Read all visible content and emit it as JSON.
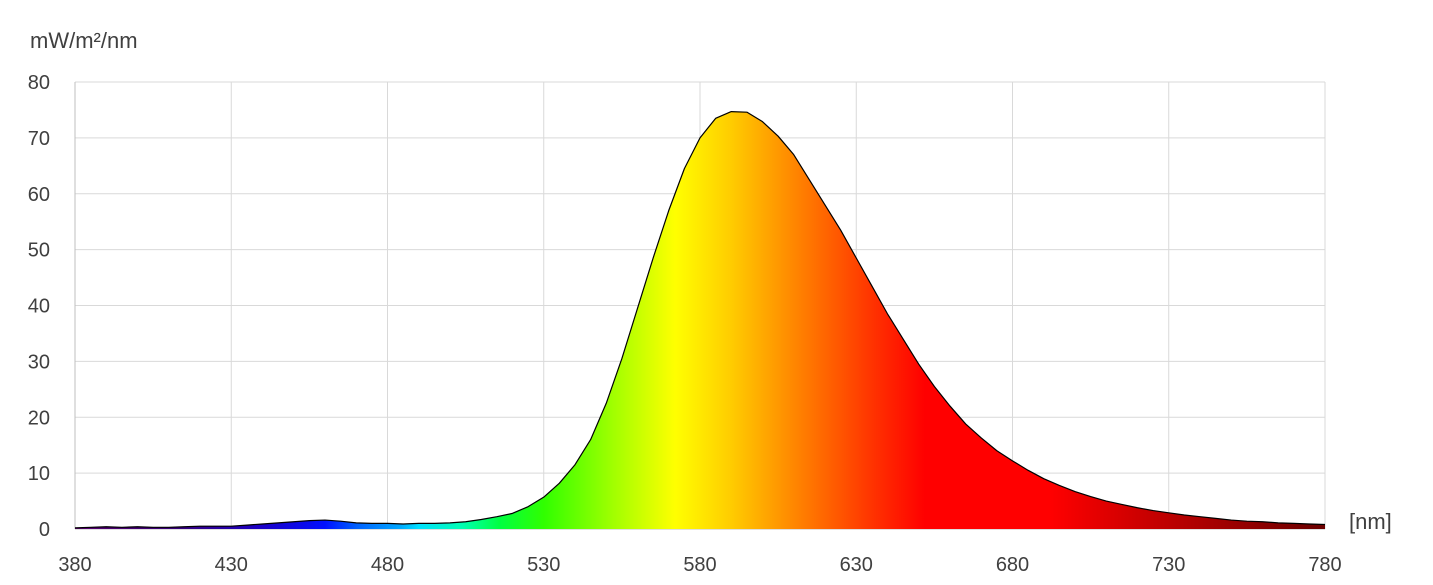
{
  "chart_data": {
    "type": "area",
    "title": "",
    "ylabel": "mW/m²/nm",
    "xlabel": "[nm]",
    "xlim": [
      380,
      780
    ],
    "ylim": [
      0,
      80
    ],
    "x_ticks": [
      "380",
      "430",
      "480",
      "530",
      "580",
      "630",
      "680",
      "730",
      "780"
    ],
    "y_ticks": [
      "0",
      "10",
      "20",
      "30",
      "40",
      "50",
      "60",
      "70",
      "80"
    ],
    "grid": true,
    "fill": "visible-spectrum-gradient",
    "series": [
      {
        "x": [
          380,
          385,
          390,
          395,
          400,
          405,
          410,
          415,
          420,
          425,
          430,
          435,
          440,
          445,
          450,
          455,
          460,
          465,
          470,
          475,
          480,
          485,
          490,
          495,
          500,
          505,
          510,
          515,
          520,
          525,
          530,
          535,
          540,
          545,
          550,
          555,
          560,
          565,
          570,
          575,
          580,
          585,
          590,
          595,
          600,
          605,
          610,
          615,
          620,
          625,
          630,
          635,
          640,
          645,
          650,
          655,
          660,
          665,
          670,
          675,
          680,
          685,
          690,
          695,
          700,
          705,
          710,
          715,
          720,
          725,
          730,
          735,
          740,
          745,
          750,
          755,
          760,
          765,
          770,
          775,
          780
        ],
        "y": [
          0.2,
          0.3,
          0.4,
          0.3,
          0.4,
          0.3,
          0.3,
          0.4,
          0.5,
          0.5,
          0.5,
          0.7,
          0.9,
          1.1,
          1.3,
          1.5,
          1.6,
          1.4,
          1.1,
          1.0,
          1.0,
          0.9,
          1.0,
          1.0,
          1.1,
          1.3,
          1.7,
          2.2,
          2.8,
          4.0,
          5.7,
          8.2,
          11.5,
          16.0,
          22.5,
          30.5,
          39.5,
          48.5,
          57.0,
          64.5,
          70.0,
          73.5,
          74.7,
          74.6,
          72.9,
          70.3,
          67.0,
          62.5,
          58.0,
          53.5,
          48.5,
          43.5,
          38.5,
          34.0,
          29.5,
          25.5,
          22.0,
          18.8,
          16.3,
          14.0,
          12.2,
          10.5,
          9.0,
          7.8,
          6.7,
          5.8,
          5.0,
          4.4,
          3.8,
          3.3,
          2.9,
          2.5,
          2.2,
          1.9,
          1.6,
          1.4,
          1.3,
          1.1,
          1.0,
          0.9,
          0.8
        ]
      }
    ]
  }
}
